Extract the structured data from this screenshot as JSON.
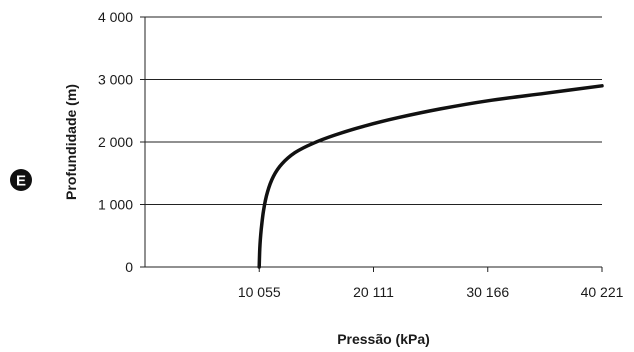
{
  "badge": {
    "letter": "E",
    "color": "#111111"
  },
  "chart_data": {
    "type": "line",
    "title": "",
    "xlabel": "Pressão (kPa)",
    "ylabel": "Profundidade (m)",
    "xlim": [
      0,
      40221
    ],
    "ylim": [
      0,
      4000
    ],
    "x_ticks": [
      {
        "value": 10055,
        "label": "10 055"
      },
      {
        "value": 20111,
        "label": "20 111"
      },
      {
        "value": 30166,
        "label": "30 166"
      },
      {
        "value": 40221,
        "label": "40 221"
      }
    ],
    "y_ticks": [
      {
        "value": 0,
        "label": "0"
      },
      {
        "value": 1000,
        "label": "1 000"
      },
      {
        "value": 2000,
        "label": "2 000"
      },
      {
        "value": 3000,
        "label": "3 000"
      },
      {
        "value": 4000,
        "label": "4 000"
      }
    ],
    "grid": "horizontal",
    "line_color": "#111111",
    "grid_color": "#222222",
    "series": [
      {
        "points": [
          {
            "x": 10055,
            "y": 0
          },
          {
            "x": 10105,
            "y": 300
          },
          {
            "x": 10230,
            "y": 600
          },
          {
            "x": 10430,
            "y": 900
          },
          {
            "x": 10780,
            "y": 1200
          },
          {
            "x": 11300,
            "y": 1450
          },
          {
            "x": 12050,
            "y": 1650
          },
          {
            "x": 13200,
            "y": 1830
          },
          {
            "x": 14800,
            "y": 1980
          },
          {
            "x": 16700,
            "y": 2110
          },
          {
            "x": 19200,
            "y": 2250
          },
          {
            "x": 22300,
            "y": 2390
          },
          {
            "x": 26000,
            "y": 2530
          },
          {
            "x": 30166,
            "y": 2660
          },
          {
            "x": 35200,
            "y": 2780
          },
          {
            "x": 40221,
            "y": 2900
          }
        ]
      }
    ]
  }
}
